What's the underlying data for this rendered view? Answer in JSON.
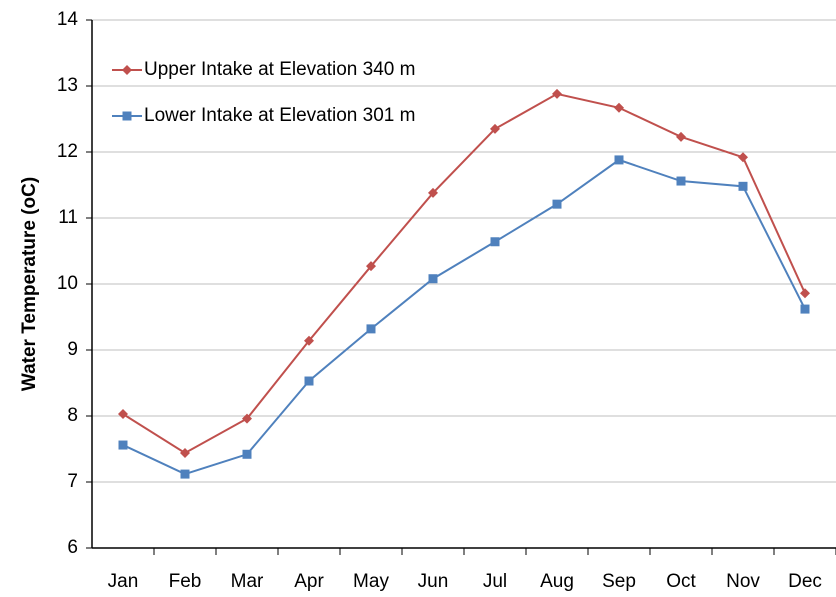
{
  "chart_data": {
    "type": "line",
    "y_label": "Water Temperature (oC)",
    "categories": [
      "Jan",
      "Feb",
      "Mar",
      "Apr",
      "May",
      "Jun",
      "Jul",
      "Aug",
      "Sep",
      "Oct",
      "Nov",
      "Dec"
    ],
    "series": [
      {
        "name": "Upper Intake at Elevation 340 m",
        "color": "#c0504d",
        "marker": "diamond",
        "values": [
          8.03,
          7.44,
          7.96,
          9.14,
          10.27,
          11.38,
          12.35,
          12.88,
          12.67,
          12.23,
          11.92,
          9.86
        ]
      },
      {
        "name": "Lower Intake at Elevation 301 m",
        "color": "#4f81bd",
        "marker": "square",
        "values": [
          7.56,
          7.12,
          7.42,
          8.53,
          9.32,
          10.08,
          10.64,
          11.21,
          11.88,
          11.56,
          11.48,
          9.62
        ]
      }
    ],
    "ylim": [
      6,
      14
    ],
    "yticks": [
      6,
      7,
      8,
      9,
      10,
      11,
      12,
      13,
      14
    ],
    "grid": true,
    "legend": "upper-left"
  }
}
